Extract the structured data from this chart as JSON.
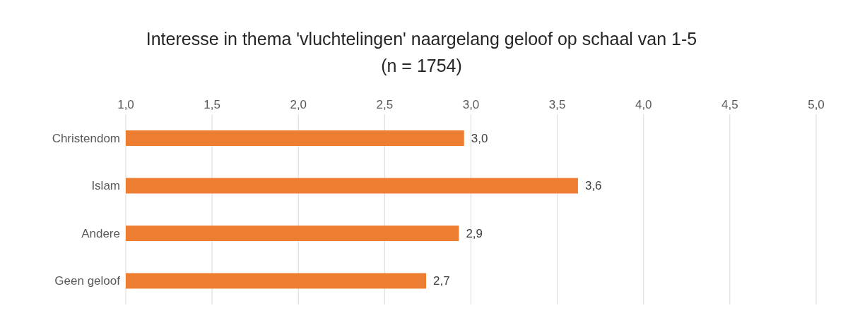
{
  "chart_data": {
    "type": "bar",
    "orientation": "horizontal",
    "title": "Interesse in thema 'vluchtelingen' naargelang geloof op schaal van 1-5\n(n = 1754)",
    "categories": [
      "Christendom",
      "Islam",
      "Andere",
      "Geen geloof"
    ],
    "values": [
      2.96,
      3.62,
      2.93,
      2.74
    ],
    "value_labels": [
      "3,0",
      "3,6",
      "2,9",
      "2,7"
    ],
    "color": "#ed7d31",
    "xlim": [
      1,
      5
    ],
    "xticks": [
      {
        "value": 1,
        "label": "1,0"
      },
      {
        "value": 1.5,
        "label": "1,5"
      },
      {
        "value": 2,
        "label": "2,0"
      },
      {
        "value": 2.5,
        "label": "2,5"
      },
      {
        "value": 3,
        "label": "3,0"
      },
      {
        "value": 3.5,
        "label": "3,5"
      },
      {
        "value": 4,
        "label": "4,0"
      },
      {
        "value": 4.5,
        "label": "4,5"
      },
      {
        "value": 5,
        "label": "5,0"
      }
    ],
    "grid": "x",
    "legend": false
  }
}
